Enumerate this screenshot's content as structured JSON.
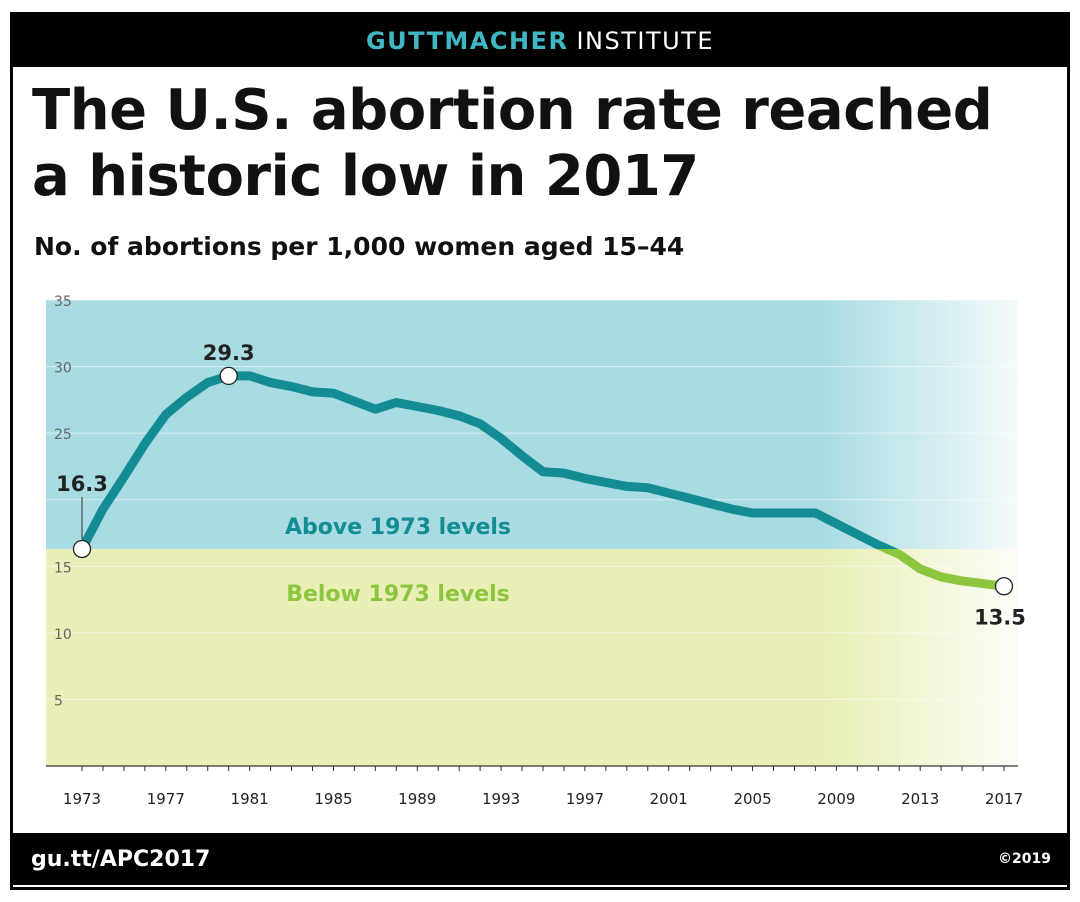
{
  "header": {
    "brand_primary": "GUTTMACHER",
    "brand_secondary": "INSTITUTE"
  },
  "footer": {
    "url": "gu.tt/APC2017",
    "copyright": "©2019"
  },
  "colors": {
    "above_band": "#a9dce2",
    "below_band": "#e9efb6",
    "line_above": "#138c93",
    "line_below": "#8cc63f",
    "brand_accent": "#3fb8c3"
  },
  "chart_data": {
    "type": "line",
    "title": "The U.S. abortion rate reached a historic low in 2017",
    "subtitle": "No. of abortions per 1,000 women aged 15–44",
    "xlabel": "",
    "ylabel": "",
    "xlim": [
      1973,
      2017
    ],
    "ylim": [
      0,
      35
    ],
    "y_ticks": [
      5,
      10,
      15,
      25,
      30,
      35
    ],
    "x_ticks": [
      1973,
      1977,
      1981,
      1985,
      1989,
      1993,
      1997,
      2001,
      2005,
      2009,
      2013,
      2017
    ],
    "grid": true,
    "reference_value": 16.3,
    "regions": [
      {
        "label": "Above 1973 levels"
      },
      {
        "label": "Below 1973 levels"
      }
    ],
    "series": [
      {
        "x": [
          1973,
          1974,
          1975,
          1976,
          1977,
          1978,
          1979,
          1980,
          1981,
          1982,
          1983,
          1984,
          1985,
          1986,
          1987,
          1988,
          1989,
          1990,
          1991,
          1992,
          1993,
          1994,
          1995,
          1996,
          1997,
          1998,
          1999,
          2000,
          2001,
          2002,
          2003,
          2004,
          2005,
          2006,
          2007,
          2008,
          2009,
          2010,
          2011,
          2012,
          2013,
          2014,
          2015,
          2016,
          2017
        ],
        "values": [
          16.3,
          19.3,
          21.7,
          24.2,
          26.4,
          27.7,
          28.8,
          29.3,
          29.3,
          28.8,
          28.5,
          28.1,
          28.0,
          27.4,
          26.8,
          27.3,
          27.0,
          26.7,
          26.3,
          25.7,
          24.6,
          23.3,
          22.1,
          22.0,
          21.6,
          21.3,
          21.0,
          20.9,
          20.5,
          20.1,
          19.7,
          19.3,
          19.0,
          19.0,
          19.0,
          19.0,
          18.2,
          17.4,
          16.6,
          15.9,
          14.8,
          14.2,
          13.9,
          13.7,
          13.5
        ]
      }
    ],
    "annotations": [
      {
        "label": "16.3",
        "x": 1973,
        "y": 16.3
      },
      {
        "label": "29.3",
        "x": 1980,
        "y": 29.3
      },
      {
        "label": "13.5",
        "x": 2017,
        "y": 13.5
      }
    ]
  }
}
